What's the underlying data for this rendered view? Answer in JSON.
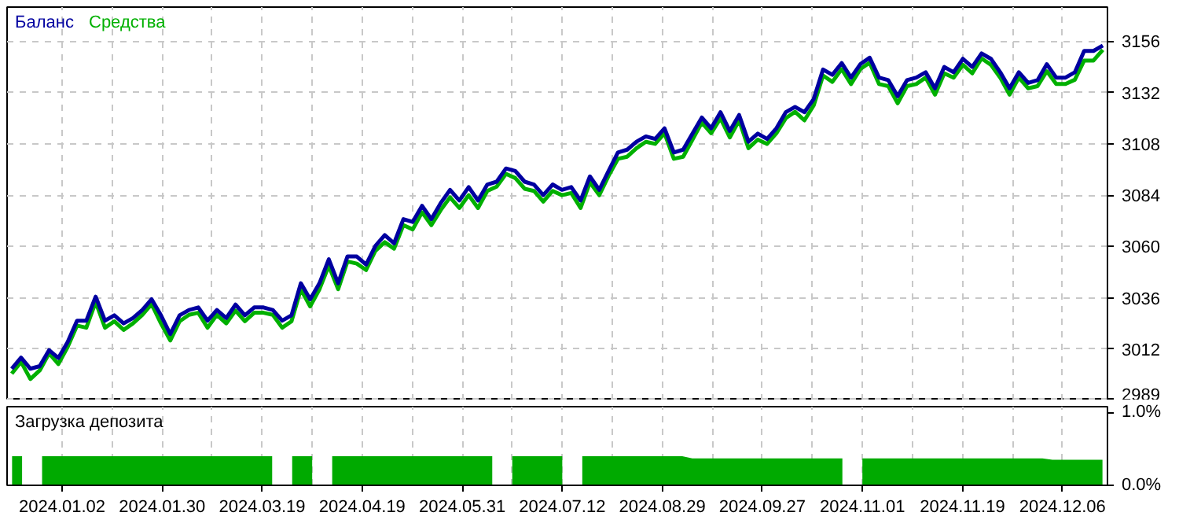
{
  "chart_data": [
    {
      "type": "line",
      "legend": "top left",
      "grid": true,
      "tick_labels": "y",
      "ylim": [
        2988,
        3172
      ],
      "yticks": [
        2989,
        3012,
        3036,
        3060,
        3084,
        3108,
        3132,
        3156
      ],
      "categories": [
        null,
        null,
        null,
        null,
        null,
        null,
        null,
        null,
        null,
        null,
        null,
        null,
        null,
        null,
        null,
        null,
        null,
        null,
        null,
        null,
        null,
        null,
        null,
        null,
        null,
        null,
        null,
        null,
        null,
        null,
        null,
        null,
        null,
        null,
        null,
        null,
        null,
        null,
        null,
        null,
        null,
        null,
        null,
        null,
        null,
        null,
        null,
        null,
        null,
        null,
        null,
        null,
        null,
        null,
        null,
        null,
        null,
        null,
        null,
        null,
        null,
        null,
        null,
        null,
        null,
        null,
        null,
        null,
        null,
        null,
        null,
        null,
        null,
        null,
        null,
        null,
        null,
        null,
        null,
        null,
        null,
        null,
        null,
        null,
        null,
        null,
        null,
        null,
        null,
        null,
        null,
        null,
        null,
        null,
        null,
        null,
        null,
        null,
        null,
        null,
        null,
        null,
        null,
        null,
        null,
        null,
        null,
        null,
        null,
        null,
        null,
        null,
        null,
        null,
        null,
        null,
        null,
        null
      ],
      "series": [
        {
          "name": "Средства",
          "color": "#00b000",
          "values": [
            3000.5,
            3006,
            2998,
            3002,
            3010,
            3005,
            3013,
            3023,
            3022,
            3034,
            3022,
            3025,
            3021,
            3024,
            3028,
            3033,
            3024,
            3016,
            3025,
            3028,
            3029,
            3022,
            3028,
            3024,
            3030,
            3025,
            3029,
            3029,
            3028,
            3022,
            3025,
            3040,
            3032,
            3040,
            3051,
            3040,
            3053,
            3052,
            3049,
            3058,
            3062,
            3059,
            3070,
            3068,
            3076,
            3070,
            3077,
            3083,
            3078,
            3084,
            3078,
            3086,
            3088,
            3094,
            3092,
            3087,
            3086,
            3081,
            3086,
            3084,
            3085,
            3078,
            3090,
            3084,
            3093,
            3101,
            3102,
            3106,
            3109,
            3108,
            3113,
            3101,
            3102,
            3110,
            3118,
            3113,
            3120,
            3111,
            3119,
            3106,
            3110,
            3108,
            3113,
            3120,
            3123,
            3119,
            3126,
            3140,
            3137,
            3143,
            3136,
            3143,
            3146,
            3136,
            3135,
            3127,
            3135,
            3136,
            3139,
            3131,
            3141,
            3139,
            3145,
            3141,
            3148,
            3145,
            3139,
            3131,
            3139,
            3134,
            3135,
            3142,
            3136,
            3136,
            3138,
            3147,
            3147,
            3152
          ]
        },
        {
          "name": "Баланс",
          "color": "#0000a0",
          "values": [
            3002.8,
            3008,
            3002.8,
            3004,
            3011.5,
            3007.8,
            3015.3,
            3025.3,
            3025.3,
            3036.5,
            3025.3,
            3027.8,
            3024,
            3026.5,
            3030.3,
            3035.3,
            3027.8,
            3019,
            3027.8,
            3030.3,
            3031.5,
            3025.3,
            3030.3,
            3026.5,
            3032.8,
            3027.8,
            3031.5,
            3031.5,
            3030.3,
            3025.3,
            3027.8,
            3042.8,
            3035.3,
            3042.8,
            3054,
            3042.8,
            3055.3,
            3055.3,
            3051.5,
            3060.3,
            3065.3,
            3061.5,
            3072.8,
            3071.5,
            3079,
            3072.8,
            3080.3,
            3086.5,
            3081.5,
            3087.8,
            3081.5,
            3089,
            3090.3,
            3096.5,
            3095.3,
            3090.3,
            3089,
            3084,
            3089,
            3086.5,
            3087.8,
            3081.5,
            3092.8,
            3086.5,
            3095.3,
            3104,
            3105.3,
            3109,
            3111.5,
            3110.3,
            3115.3,
            3104,
            3105.3,
            3112.8,
            3120.3,
            3115.3,
            3122.8,
            3114,
            3121.5,
            3109,
            3112.8,
            3110.3,
            3115.3,
            3122.8,
            3125.3,
            3122.8,
            3129,
            3142.8,
            3140.3,
            3145.8,
            3139,
            3145.3,
            3148.3,
            3139,
            3137.8,
            3130.3,
            3137.8,
            3139,
            3141.5,
            3134,
            3144,
            3141.5,
            3147.8,
            3144,
            3150.3,
            3147.8,
            3141.5,
            3134,
            3141.5,
            3136.5,
            3137.8,
            3145.3,
            3139,
            3139,
            3141.5,
            3151.5,
            3151.5,
            3154
          ]
        }
      ]
    },
    {
      "type": "area",
      "title": "Загрузка депозита",
      "grid": "x",
      "ylim": [
        0,
        1.08
      ],
      "yticks": [
        {
          "value": 0,
          "label": "0.0%"
        },
        {
          "value": 1,
          "label": "1.0%"
        }
      ],
      "categories": [
        null,
        null,
        null,
        null,
        null,
        "2024.01.02",
        null,
        null,
        null,
        null,
        null,
        null,
        null,
        null,
        null,
        "2024.01.30",
        null,
        null,
        null,
        null,
        null,
        null,
        null,
        null,
        null,
        "2024.03.19",
        null,
        null,
        null,
        null,
        null,
        null,
        null,
        null,
        null,
        "2024.04.19",
        null,
        null,
        null,
        null,
        null,
        null,
        null,
        null,
        null,
        "2024.05.31",
        null,
        null,
        null,
        null,
        null,
        null,
        null,
        null,
        null,
        "2024.07.12",
        null,
        null,
        null,
        null,
        null,
        null,
        null,
        null,
        null,
        "2024.08.29",
        null,
        null,
        null,
        null,
        null,
        null,
        null,
        null,
        null,
        "2024.09.27",
        null,
        null,
        null,
        null,
        null,
        null,
        null,
        null,
        null,
        "2024.11.01",
        null,
        null,
        null,
        null,
        null,
        null,
        null,
        null,
        null,
        "2024.11.19",
        null,
        null,
        null,
        null,
        null,
        null,
        null,
        null,
        null,
        "2024.12.06",
        null,
        null,
        null,
        null
      ],
      "series": [
        {
          "color": "#00aa00",
          "values": [
            0.4,
            0.4,
            null,
            0.4,
            0.4,
            0.4,
            0.4,
            0.4,
            0.4,
            0.4,
            0.4,
            0.4,
            0.4,
            0.4,
            0.4,
            0.4,
            0.4,
            0.4,
            0.4,
            0.4,
            0.4,
            0.4,
            0.4,
            0.4,
            0.4,
            0.4,
            0.4,
            null,
            0.4,
            0.4,
            0.4,
            null,
            0.4,
            0.4,
            0.4,
            0.4,
            0.4,
            0.4,
            0.4,
            0.4,
            0.4,
            0.4,
            0.4,
            0.4,
            0.4,
            0.4,
            0.4,
            0.4,
            0.4,
            null,
            0.4,
            0.4,
            0.4,
            0.4,
            0.4,
            0.4,
            null,
            0.4,
            0.4,
            0.4,
            0.4,
            0.4,
            0.4,
            0.4,
            0.4,
            0.4,
            0.4,
            0.4,
            0.37,
            0.37,
            0.37,
            0.37,
            0.37,
            0.37,
            0.37,
            0.37,
            0.37,
            0.37,
            0.37,
            0.37,
            0.37,
            0.37,
            0.37,
            0.37,
            null,
            0.37,
            0.37,
            0.37,
            0.37,
            0.37,
            0.37,
            0.37,
            0.37,
            0.37,
            0.37,
            0.37,
            0.37,
            0.37,
            0.37,
            0.37,
            0.37,
            0.37,
            0.37,
            0.37,
            0.35,
            0.35,
            0.35,
            0.35,
            0.35,
            0.35
          ]
        }
      ]
    }
  ]
}
